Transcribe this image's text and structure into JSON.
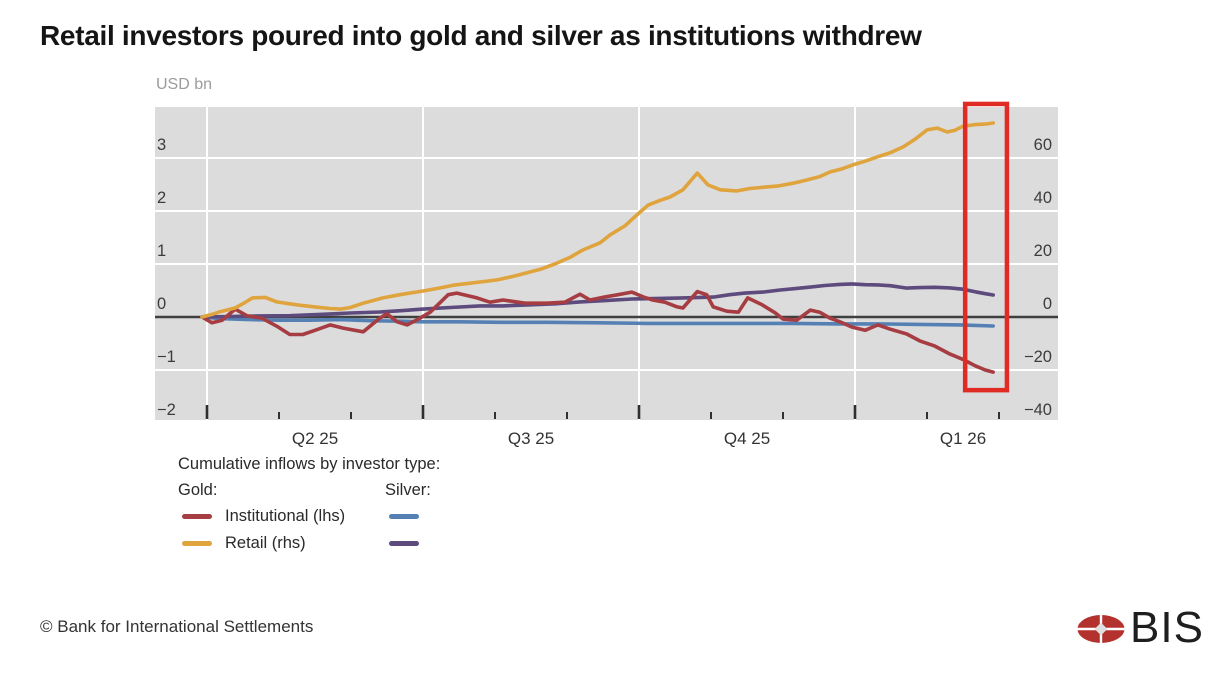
{
  "title": "Retail investors poured into gold and silver as institutions withdrew",
  "legend": {
    "heading": "Cumulative inflows by investor type:",
    "gold_label": "Gold:",
    "silver_label": "Silver:",
    "row1_label": "Institutional (lhs)",
    "row2_label": "Retail (rhs)"
  },
  "footer": {
    "copyright": "© Bank for International Settlements",
    "logo_text": "BIS"
  },
  "chart_data": {
    "type": "line",
    "title": "Retail investors poured into gold and silver as institutions withdrew",
    "unit_label": "USD bn",
    "grid": true,
    "legend_position": "bottom-left",
    "x_axis": {
      "unit": "months since 2025-04-01",
      "range_m": [
        -0.72,
        11.82
      ],
      "quarter_tick_m": [
        0,
        3,
        6,
        9
      ],
      "month_tick_m": [
        1,
        2,
        4,
        5,
        7,
        8,
        10,
        11
      ],
      "labels": [
        {
          "m": 1.5,
          "text": "Q2 25"
        },
        {
          "m": 4.5,
          "text": "Q3 25"
        },
        {
          "m": 7.5,
          "text": "Q4 25"
        },
        {
          "m": 10.5,
          "text": "Q1 26"
        }
      ]
    },
    "left_axis": {
      "side": "lhs",
      "ylim": [
        -1.94,
        3.96
      ],
      "ticks": [
        {
          "v": 3,
          "text": "3"
        },
        {
          "v": 2,
          "text": "2"
        },
        {
          "v": 1,
          "text": "1"
        },
        {
          "v": 0,
          "text": "0"
        },
        {
          "v": -1,
          "text": "−1"
        },
        {
          "v": -2,
          "text": "−2"
        }
      ]
    },
    "right_axis": {
      "side": "rhs",
      "ylim": [
        -38.8,
        79.2
      ],
      "scale_vs_lhs": 20,
      "ticks": [
        {
          "v": 60,
          "text": "60"
        },
        {
          "v": 40,
          "text": "40"
        },
        {
          "v": 20,
          "text": "20"
        },
        {
          "v": 0,
          "text": "0"
        },
        {
          "v": -20,
          "text": "−20"
        },
        {
          "v": -40,
          "text": "−40"
        }
      ]
    },
    "series": [
      {
        "id": "silver-institutional",
        "legend_group": "Silver",
        "name": "Institutional (lhs)",
        "axis": "lhs",
        "color": "#5580b4",
        "points": [
          [
            -0.07,
            0
          ],
          [
            0.18,
            -0.03
          ],
          [
            0.6,
            -0.05
          ],
          [
            1.01,
            -0.06
          ],
          [
            1.43,
            -0.06
          ],
          [
            1.85,
            -0.05
          ],
          [
            2.26,
            -0.07
          ],
          [
            2.68,
            -0.08
          ],
          [
            3,
            -0.09
          ],
          [
            3.51,
            -0.09
          ],
          [
            4.07,
            -0.1
          ],
          [
            4.72,
            -0.1
          ],
          [
            5.46,
            -0.11
          ],
          [
            6.11,
            -0.12
          ],
          [
            6.85,
            -0.12
          ],
          [
            7.54,
            -0.12
          ],
          [
            8.14,
            -0.12
          ],
          [
            8.79,
            -0.13
          ],
          [
            9.35,
            -0.13
          ],
          [
            9.9,
            -0.14
          ],
          [
            10.46,
            -0.15
          ],
          [
            10.92,
            -0.17
          ]
        ]
      },
      {
        "id": "silver-retail",
        "legend_group": "Silver",
        "name": "Retail (rhs)",
        "axis": "rhs",
        "color": "#5e4b7e",
        "points": [
          [
            -0.07,
            0
          ],
          [
            0.32,
            0.2
          ],
          [
            0.74,
            0.4
          ],
          [
            1.15,
            0.5
          ],
          [
            1.57,
            1
          ],
          [
            1.99,
            1.5
          ],
          [
            2.4,
            1.9
          ],
          [
            2.72,
            2.4
          ],
          [
            3,
            3
          ],
          [
            3.38,
            3.6
          ],
          [
            3.79,
            4.2
          ],
          [
            4.11,
            4.2
          ],
          [
            4.49,
            4.6
          ],
          [
            4.83,
            5
          ],
          [
            5.18,
            5.7
          ],
          [
            5.53,
            6.2
          ],
          [
            5.9,
            6.8
          ],
          [
            6.29,
            7
          ],
          [
            6.61,
            7.2
          ],
          [
            7.03,
            7.5
          ],
          [
            7.26,
            8.4
          ],
          [
            7.47,
            9
          ],
          [
            7.72,
            9.4
          ],
          [
            7.96,
            10.2
          ],
          [
            8.19,
            10.8
          ],
          [
            8.38,
            11.3
          ],
          [
            8.58,
            11.9
          ],
          [
            8.79,
            12.3
          ],
          [
            8.96,
            12.5
          ],
          [
            9.14,
            12.2
          ],
          [
            9.32,
            12.1
          ],
          [
            9.49,
            11.8
          ],
          [
            9.72,
            10.9
          ],
          [
            9.9,
            11.1
          ],
          [
            10.11,
            11.2
          ],
          [
            10.32,
            11
          ],
          [
            10.5,
            10.5
          ],
          [
            10.67,
            9.5
          ],
          [
            10.81,
            8.8
          ],
          [
            10.92,
            8.3
          ]
        ]
      },
      {
        "id": "gold-institutional",
        "legend_group": "Gold",
        "name": "Institutional (lhs)",
        "axis": "lhs",
        "color": "#a63d42",
        "points": [
          [
            -0.07,
            0
          ],
          [
            0.07,
            -0.11
          ],
          [
            0.21,
            -0.06
          ],
          [
            0.39,
            0.15
          ],
          [
            0.56,
            0.02
          ],
          [
            0.76,
            -0.02
          ],
          [
            0.99,
            -0.19
          ],
          [
            1.15,
            -0.33
          ],
          [
            1.33,
            -0.33
          ],
          [
            1.5,
            -0.25
          ],
          [
            1.71,
            -0.15
          ],
          [
            1.89,
            -0.21
          ],
          [
            2.17,
            -0.28
          ],
          [
            2.4,
            -0.02
          ],
          [
            2.5,
            0.06
          ],
          [
            2.64,
            -0.09
          ],
          [
            2.78,
            -0.15
          ],
          [
            2.96,
            -0.02
          ],
          [
            3.1,
            0.09
          ],
          [
            3.35,
            0.42
          ],
          [
            3.47,
            0.45
          ],
          [
            3.75,
            0.36
          ],
          [
            3.93,
            0.28
          ],
          [
            4.11,
            0.32
          ],
          [
            4.42,
            0.26
          ],
          [
            4.72,
            0.26
          ],
          [
            4.97,
            0.28
          ],
          [
            5.18,
            0.43
          ],
          [
            5.32,
            0.32
          ],
          [
            5.53,
            0.38
          ],
          [
            5.71,
            0.42
          ],
          [
            5.9,
            0.47
          ],
          [
            6.06,
            0.38
          ],
          [
            6.19,
            0.32
          ],
          [
            6.36,
            0.28
          ],
          [
            6.53,
            0.19
          ],
          [
            6.61,
            0.17
          ],
          [
            6.81,
            0.48
          ],
          [
            6.94,
            0.42
          ],
          [
            7.03,
            0.19
          ],
          [
            7.22,
            0.11
          ],
          [
            7.38,
            0.09
          ],
          [
            7.51,
            0.36
          ],
          [
            7.71,
            0.23
          ],
          [
            7.89,
            0.08
          ],
          [
            8,
            -0.04
          ],
          [
            8.19,
            -0.06
          ],
          [
            8.38,
            0.13
          ],
          [
            8.51,
            0.09
          ],
          [
            8.65,
            -0.02
          ],
          [
            8.79,
            -0.09
          ],
          [
            8.96,
            -0.19
          ],
          [
            9.14,
            -0.25
          ],
          [
            9.32,
            -0.15
          ],
          [
            9.49,
            -0.23
          ],
          [
            9.72,
            -0.32
          ],
          [
            9.9,
            -0.45
          ],
          [
            10.11,
            -0.55
          ],
          [
            10.32,
            -0.7
          ],
          [
            10.5,
            -0.8
          ],
          [
            10.67,
            -0.92
          ],
          [
            10.81,
            -1
          ],
          [
            10.92,
            -1.04
          ]
        ]
      },
      {
        "id": "gold-retail",
        "legend_group": "Gold",
        "name": "Retail (rhs)",
        "axis": "rhs",
        "color": "#e0a43e",
        "points": [
          [
            -0.07,
            0
          ],
          [
            0.07,
            1
          ],
          [
            0.18,
            2
          ],
          [
            0.39,
            3.4
          ],
          [
            0.53,
            5.5
          ],
          [
            0.63,
            7.2
          ],
          [
            0.81,
            7.4
          ],
          [
            0.97,
            5.7
          ],
          [
            1.15,
            5
          ],
          [
            1.33,
            4.3
          ],
          [
            1.5,
            3.8
          ],
          [
            1.71,
            3.2
          ],
          [
            1.85,
            3
          ],
          [
            1.99,
            3.6
          ],
          [
            2.17,
            5.2
          ],
          [
            2.44,
            7.2
          ],
          [
            2.72,
            8.6
          ],
          [
            3,
            9.8
          ],
          [
            3.24,
            11
          ],
          [
            3.42,
            12
          ],
          [
            3.61,
            12.6
          ],
          [
            3.79,
            13.2
          ],
          [
            4.03,
            14
          ],
          [
            4.28,
            15.5
          ],
          [
            4.49,
            17
          ],
          [
            4.63,
            18
          ],
          [
            4.83,
            20
          ],
          [
            5.04,
            22.5
          ],
          [
            5.22,
            25.3
          ],
          [
            5.46,
            28
          ],
          [
            5.6,
            31
          ],
          [
            5.81,
            34.5
          ],
          [
            5.97,
            38.5
          ],
          [
            6.13,
            42.3
          ],
          [
            6.29,
            44
          ],
          [
            6.43,
            45.3
          ],
          [
            6.61,
            48
          ],
          [
            6.81,
            54.3
          ],
          [
            6.96,
            49.8
          ],
          [
            7.13,
            48
          ],
          [
            7.36,
            47.6
          ],
          [
            7.54,
            48.5
          ],
          [
            7.75,
            49
          ],
          [
            7.92,
            49.4
          ],
          [
            8.14,
            50.5
          ],
          [
            8.33,
            51.7
          ],
          [
            8.51,
            53
          ],
          [
            8.65,
            54.7
          ],
          [
            8.83,
            56
          ],
          [
            8.97,
            57.4
          ],
          [
            9.14,
            58.8
          ],
          [
            9.31,
            60.4
          ],
          [
            9.49,
            62
          ],
          [
            9.67,
            64.2
          ],
          [
            9.83,
            67
          ],
          [
            10,
            70.6
          ],
          [
            10.14,
            71.3
          ],
          [
            10.28,
            69.8
          ],
          [
            10.39,
            70.5
          ],
          [
            10.5,
            72
          ],
          [
            10.67,
            72.6
          ],
          [
            10.81,
            72.8
          ],
          [
            10.92,
            73.2
          ]
        ]
      }
    ],
    "highlight_box": {
      "m_from": 10.53,
      "m_to": 11.11,
      "v_from_lhs": -1.38,
      "v_to_lhs": 4.02,
      "color": "#e02a24"
    },
    "colors": {
      "plot_bg": "#dcdcdc",
      "grid": "#ffffff",
      "zero_line": "#3f3f3f",
      "tick": "#2f2f2f",
      "axis_text": "#3c3c3c",
      "x_label_text": "#333333"
    }
  }
}
